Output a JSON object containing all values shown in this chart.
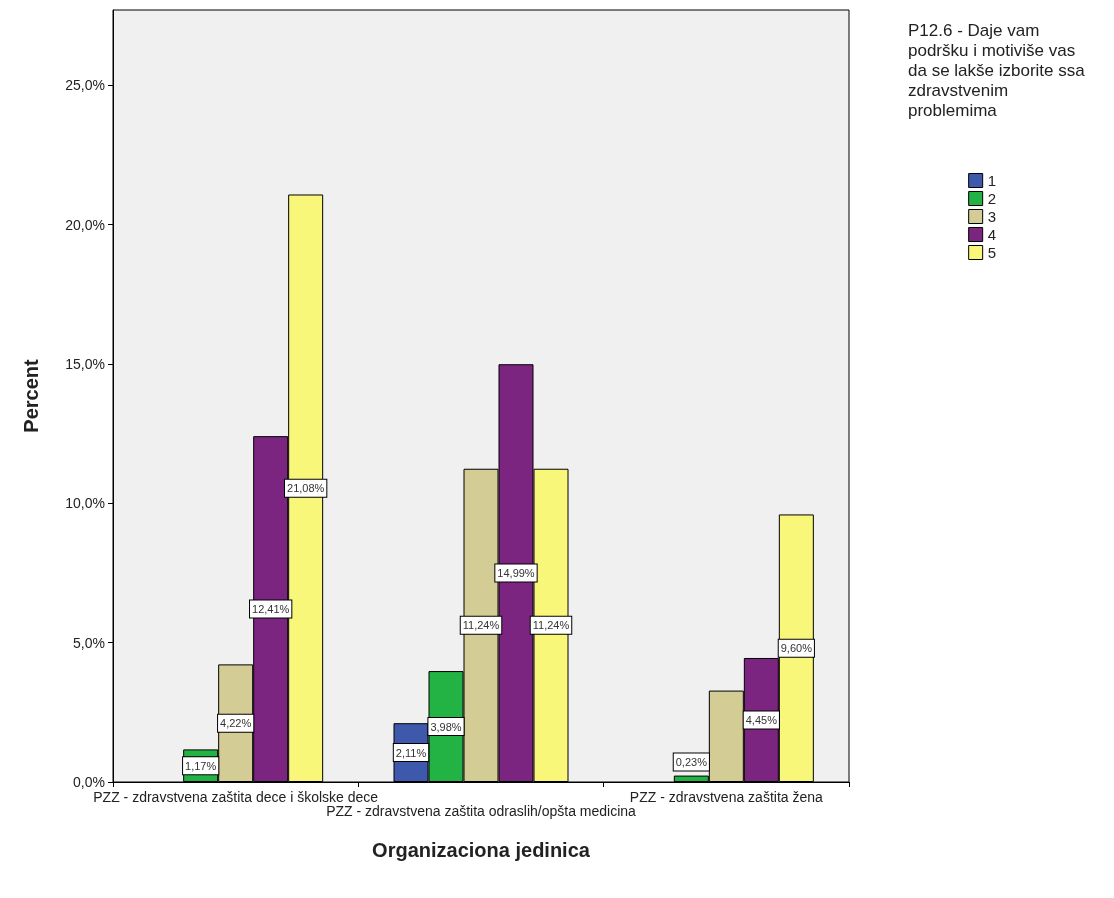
{
  "chart_data": {
    "type": "bar",
    "xlabel": "Organizaciona jedinica",
    "ylabel": "Percent",
    "legend_title": "P12.6 - Daje vam podršku i motiviše vas da se lakše izborite ssa zdravstvenim problemima",
    "legend": "right",
    "categories": [
      "PZZ - zdravstvena zaštita dece i školske dece",
      "PZZ - zdravstvena zaštita odraslih/opšta medicina",
      "PZZ - zdravstvena zaštita žena"
    ],
    "ylim": [
      0,
      27.7
    ],
    "yticks": [
      {
        "value": 0,
        "label": "0,0%"
      },
      {
        "value": 5,
        "label": "5,0%"
      },
      {
        "value": 10,
        "label": "10,0%"
      },
      {
        "value": 15,
        "label": "15,0%"
      },
      {
        "value": 20,
        "label": "20,0%"
      },
      {
        "value": 25,
        "label": "25,0%"
      }
    ],
    "grid": false,
    "series": [
      {
        "name": "1",
        "color": "#3e58ac",
        "values": [
          null,
          2.11,
          null
        ],
        "value_labels": [
          null,
          "2,11%",
          null
        ]
      },
      {
        "name": "2",
        "color": "#23b345",
        "values": [
          1.17,
          3.98,
          0.23
        ],
        "value_labels": [
          "1,17%",
          "3,98%",
          "0,23%"
        ]
      },
      {
        "name": "3",
        "color": "#d3cc95",
        "values": [
          4.22,
          11.24,
          3.28
        ],
        "value_labels": [
          "4,22%",
          "11,24%",
          null
        ]
      },
      {
        "name": "4",
        "color": "#7b2480",
        "values": [
          12.41,
          14.99,
          4.45
        ],
        "value_labels": [
          "12,41%",
          "14,99%",
          "4,45%"
        ]
      },
      {
        "name": "5",
        "color": "#f9f77a",
        "values": [
          21.08,
          11.24,
          9.6
        ],
        "value_labels": [
          "21,08%",
          "11,24%",
          "9,60%"
        ]
      }
    ]
  }
}
